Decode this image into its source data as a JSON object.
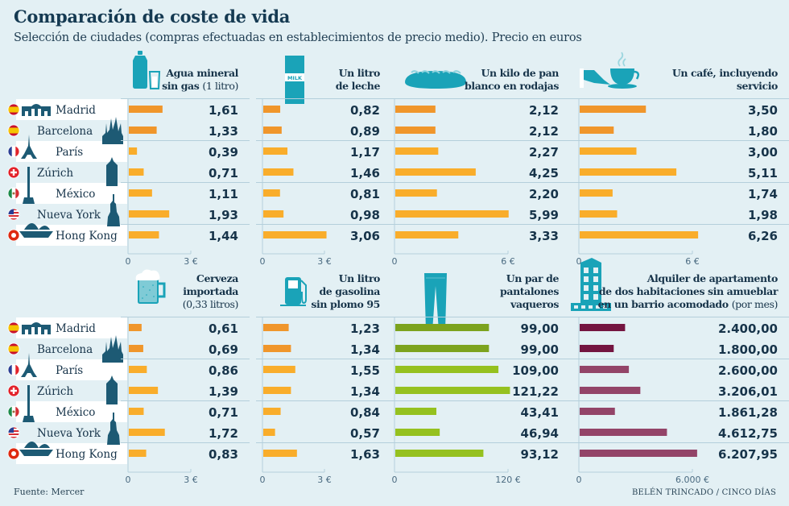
{
  "header": {
    "title": "Comparación de coste de vida",
    "subtitle": "Selección de ciudades (compras efectuadas en establecimientos de precio medio). Precio en euros"
  },
  "footer": {
    "source": "Fuente: Mercer",
    "credit": "BELÉN TRINCADO / CINCO DÍAS"
  },
  "cities": [
    {
      "name": "Madrid",
      "flag": "spain-flag-icon",
      "landmark": "puerta-de-alcala-icon"
    },
    {
      "name": "Barcelona",
      "flag": "spain-flag-icon",
      "landmark": "sagrada-familia-icon"
    },
    {
      "name": "París",
      "flag": "france-flag-icon",
      "landmark": "eiffel-tower-icon"
    },
    {
      "name": "Zúrich",
      "flag": "switzerland-flag-icon",
      "landmark": "zurich-building-icon"
    },
    {
      "name": "México",
      "flag": "mexico-flag-icon",
      "landmark": "angel-independencia-icon"
    },
    {
      "name": "Nueva York",
      "flag": "usa-flag-icon",
      "landmark": "statue-of-liberty-icon"
    },
    {
      "name": "Hong Kong",
      "flag": "hong-kong-flag-icon",
      "landmark": "junk-boat-icon"
    }
  ],
  "colors": {
    "spain": "#f0962b",
    "other": "#f9ad2b",
    "jeans_spain": "#7ca31e",
    "jeans_other": "#95c11f",
    "rent_spain": "#741540",
    "rent_other": "#934468",
    "icon": "#1aa3b8",
    "landmark": "#1d5a74"
  },
  "chart_data": [
    {
      "type": "bar",
      "id": "water",
      "icon": "water-bottle-icon",
      "title_bold": [
        "Agua mineral",
        "sin gas"
      ],
      "title_light": "(1 litro)",
      "categories": [
        "Madrid",
        "Barcelona",
        "París",
        "Zúrich",
        "México",
        "Nueva York",
        "Hong Kong"
      ],
      "values": [
        1.61,
        1.33,
        0.39,
        0.71,
        1.11,
        1.93,
        1.44
      ],
      "labels": [
        "1,61",
        "1,33",
        "0,39",
        "0,71",
        "1,11",
        "1,93",
        "1,44"
      ],
      "xlim": [
        0,
        3
      ],
      "ticks": [
        "0",
        "3 €"
      ],
      "palette": "orange"
    },
    {
      "type": "bar",
      "id": "milk",
      "icon": "milk-carton-icon",
      "icon_text": "MILK",
      "title_bold": [
        "Un litro",
        "de leche"
      ],
      "title_light": "",
      "categories": [
        "Madrid",
        "Barcelona",
        "París",
        "Zúrich",
        "México",
        "Nueva York",
        "Hong Kong"
      ],
      "values": [
        0.82,
        0.89,
        1.17,
        1.46,
        0.81,
        0.98,
        3.06
      ],
      "labels": [
        "0,82",
        "0,89",
        "1,17",
        "1,46",
        "0,81",
        "0,98",
        "3,06"
      ],
      "xlim": [
        0,
        3
      ],
      "ticks": [
        "0",
        "3 €"
      ],
      "palette": "orange"
    },
    {
      "type": "bar",
      "id": "bread",
      "icon": "bread-loaf-icon",
      "title_bold": [
        "Un kilo de pan",
        "blanco en rodajas"
      ],
      "title_light": "",
      "categories": [
        "Madrid",
        "Barcelona",
        "París",
        "Zúrich",
        "México",
        "Nueva York",
        "Hong Kong"
      ],
      "values": [
        2.12,
        2.12,
        2.27,
        4.25,
        2.2,
        5.99,
        3.33
      ],
      "labels": [
        "2,12",
        "2,12",
        "2,27",
        "4,25",
        "2,20",
        "5,99",
        "3,33"
      ],
      "xlim": [
        0,
        6
      ],
      "ticks": [
        "0",
        "6 €"
      ],
      "palette": "orange"
    },
    {
      "type": "bar",
      "id": "coffee",
      "icon": "coffee-cup-icon",
      "title_bold": [
        "Un café, incluyendo",
        "servicio"
      ],
      "title_light": "",
      "categories": [
        "Madrid",
        "Barcelona",
        "París",
        "Zúrich",
        "México",
        "Nueva York",
        "Hong Kong"
      ],
      "values": [
        3.5,
        1.8,
        3.0,
        5.11,
        1.74,
        1.98,
        6.26
      ],
      "labels": [
        "3,50",
        "1,80",
        "3,00",
        "5,11",
        "1,74",
        "1,98",
        "6,26"
      ],
      "xlim": [
        0,
        6
      ],
      "ticks": [
        "0",
        "6 €"
      ],
      "palette": "orange"
    },
    {
      "type": "bar",
      "id": "beer",
      "icon": "beer-mug-icon",
      "title_bold": [
        "Cerveza",
        "importada"
      ],
      "title_light": "(0,33 litros)",
      "categories": [
        "Madrid",
        "Barcelona",
        "París",
        "Zúrich",
        "México",
        "Nueva York",
        "Hong Kong"
      ],
      "values": [
        0.61,
        0.69,
        0.86,
        1.39,
        0.71,
        1.72,
        0.83
      ],
      "labels": [
        "0,61",
        "0,69",
        "0,86",
        "1,39",
        "0,71",
        "1,72",
        "0,83"
      ],
      "xlim": [
        0,
        3
      ],
      "ticks": [
        "0",
        "3 €"
      ],
      "palette": "orange"
    },
    {
      "type": "bar",
      "id": "gasoline",
      "icon": "gas-pump-icon",
      "title_bold": [
        "Un litro",
        "de gasolina",
        "sin plomo 95"
      ],
      "title_light": "",
      "categories": [
        "Madrid",
        "Barcelona",
        "París",
        "Zúrich",
        "México",
        "Nueva York",
        "Hong Kong"
      ],
      "values": [
        1.23,
        1.34,
        1.55,
        1.34,
        0.84,
        0.57,
        1.63
      ],
      "labels": [
        "1,23",
        "1,34",
        "1,55",
        "1,34",
        "0,84",
        "0,57",
        "1,63"
      ],
      "xlim": [
        0,
        3
      ],
      "ticks": [
        "0",
        "3 €"
      ],
      "palette": "orange"
    },
    {
      "type": "bar",
      "id": "jeans",
      "icon": "jeans-icon",
      "title_bold": [
        "Un par de",
        "pantalones",
        "vaqueros"
      ],
      "title_light": "",
      "categories": [
        "Madrid",
        "Barcelona",
        "París",
        "Zúrich",
        "México",
        "Nueva York",
        "Hong Kong"
      ],
      "values": [
        99.0,
        99.0,
        109.0,
        121.22,
        43.41,
        46.94,
        93.12
      ],
      "labels": [
        "99,00",
        "99,00",
        "109,00",
        "121,22",
        "43,41",
        "46,94",
        "93,12"
      ],
      "xlim": [
        0,
        120
      ],
      "ticks": [
        "0",
        "120 €"
      ],
      "palette": "green"
    },
    {
      "type": "bar",
      "id": "rent",
      "icon": "apartment-building-icon",
      "title_bold": [
        "Alquiler de apartamento",
        "de dos habitaciones sin amueblar",
        "en un barrio acomodado"
      ],
      "title_light": "(por mes)",
      "categories": [
        "Madrid",
        "Barcelona",
        "París",
        "Zúrich",
        "México",
        "Nueva York",
        "Hong Kong"
      ],
      "values": [
        2400.0,
        1800.0,
        2600.0,
        3206.01,
        1861.28,
        4612.75,
        6207.95
      ],
      "labels": [
        "2.400,00",
        "1.800,00",
        "2.600,00",
        "3.206,01",
        "1.861,28",
        "4.612,75",
        "6.207,95"
      ],
      "xlim": [
        0,
        6000
      ],
      "ticks": [
        "0",
        "6.000 €"
      ],
      "palette": "purple"
    }
  ]
}
